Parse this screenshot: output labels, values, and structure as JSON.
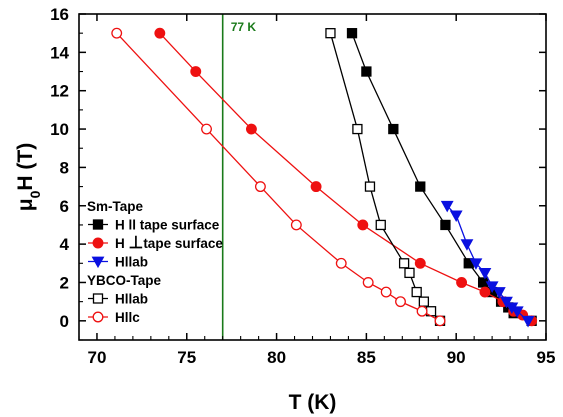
{
  "chart_data": {
    "type": "scatter",
    "title": "",
    "xlabel": "T (K)",
    "ylabel_parts": [
      "μ",
      "0",
      "H (T)"
    ],
    "xlim": [
      69,
      95
    ],
    "ylim": [
      -1,
      16
    ],
    "xticks": [
      70,
      75,
      80,
      85,
      90,
      95
    ],
    "yticks": [
      0,
      2,
      4,
      6,
      8,
      10,
      12,
      14,
      16
    ],
    "grid": false,
    "legend_position": "bottom-left",
    "reference_line": {
      "x": 77,
      "label": "77 K",
      "color": "#1a7a1a"
    },
    "groups": [
      {
        "heading": "Sm-Tape",
        "series_indices": [
          0,
          1,
          2
        ]
      },
      {
        "heading": "YBCO-Tape",
        "series_indices": [
          3,
          4
        ]
      }
    ],
    "series": [
      {
        "name": "H || tape surface",
        "legend_parts": [
          "H ",
          "ll",
          " tape surface"
        ],
        "color": "#000000",
        "line_color": "#000000",
        "marker": "square",
        "filled": true,
        "x": [
          84.2,
          85.0,
          86.5,
          88.0,
          89.4,
          90.7,
          91.5,
          92.0,
          92.5,
          92.9,
          93.2,
          94.2
        ],
        "y": [
          15,
          13,
          10,
          7,
          5,
          3,
          2,
          1.5,
          1,
          0.7,
          0.4,
          0
        ]
      },
      {
        "name": "H ⊥ tape surface",
        "legend_parts": [
          "H ",
          "⊥",
          "tape surface"
        ],
        "color": "#ee1111",
        "line_color": "#ee1111",
        "marker": "circle",
        "filled": true,
        "x": [
          73.5,
          75.5,
          78.6,
          82.2,
          84.8,
          88.0,
          90.3,
          91.6,
          92.6,
          93.2,
          93.7,
          94.2
        ],
        "y": [
          15,
          13,
          10,
          7,
          5,
          3,
          2,
          1.5,
          1,
          0.5,
          0.3,
          0
        ]
      },
      {
        "name": "Hllab",
        "legend_parts": [
          "Hllab"
        ],
        "color": "#0a10e0",
        "line_color": "#0a10e0",
        "marker": "triangle-down",
        "filled": true,
        "x": [
          89.5,
          90.0,
          90.6,
          91.1,
          91.6,
          92.0,
          92.4,
          92.8,
          93.1,
          93.4,
          94.0
        ],
        "y": [
          6,
          5.5,
          4,
          3,
          2.5,
          1.8,
          1.5,
          1,
          0.7,
          0.5,
          0
        ]
      },
      {
        "name": "Hllab",
        "legend_parts": [
          "Hllab"
        ],
        "color": "#000000",
        "line_color": "#000000",
        "marker": "square",
        "filled": false,
        "x": [
          83.0,
          84.5,
          85.2,
          85.8,
          87.1,
          87.4,
          87.8,
          88.2,
          88.6,
          89.1
        ],
        "y": [
          15,
          10,
          7,
          5,
          3,
          2.5,
          1.5,
          1,
          0.5,
          0
        ]
      },
      {
        "name": "Hllc",
        "legend_parts": [
          "Hllc"
        ],
        "color": "#ee1111",
        "line_color": "#ee1111",
        "marker": "circle",
        "filled": false,
        "x": [
          71.1,
          76.1,
          79.1,
          81.1,
          83.6,
          85.1,
          86.1,
          86.9,
          88.1,
          89.1
        ],
        "y": [
          15,
          10,
          7,
          5,
          3,
          2,
          1.5,
          1,
          0.5,
          0
        ]
      }
    ]
  }
}
